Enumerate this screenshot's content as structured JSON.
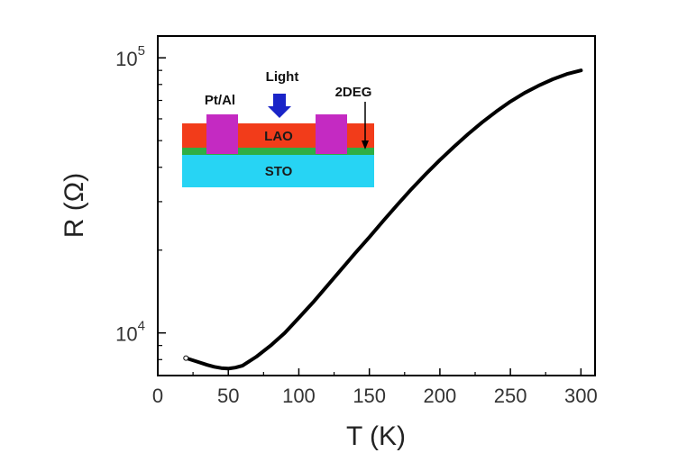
{
  "chart_data": {
    "type": "line",
    "title": "",
    "xlabel": "T (K)",
    "ylabel": "R (Ω)",
    "xlim": [
      0,
      310
    ],
    "ylim": [
      7000,
      120000
    ],
    "yscale": "log",
    "grid": false,
    "x_ticks": [
      {
        "value": 0,
        "label": "0"
      },
      {
        "value": 50,
        "label": "50"
      },
      {
        "value": 100,
        "label": "100"
      },
      {
        "value": 150,
        "label": "150"
      },
      {
        "value": 200,
        "label": "200"
      },
      {
        "value": 250,
        "label": "250"
      },
      {
        "value": 300,
        "label": "300"
      }
    ],
    "y_ticks": [
      {
        "value": 10000,
        "base": "10",
        "exp": "4"
      },
      {
        "value": 100000,
        "base": "10",
        "exp": "5"
      }
    ],
    "series": [
      {
        "name": "R(T)",
        "color": "#000000",
        "x": [
          20,
          25,
          30,
          35,
          40,
          45,
          50,
          55,
          60,
          70,
          80,
          90,
          100,
          110,
          120,
          130,
          140,
          150,
          160,
          170,
          180,
          190,
          200,
          210,
          220,
          230,
          240,
          250,
          260,
          270,
          280,
          290,
          300
        ],
        "y": [
          8100,
          7950,
          7800,
          7650,
          7530,
          7450,
          7420,
          7480,
          7600,
          8200,
          9000,
          10000,
          11350,
          12900,
          14800,
          17000,
          19500,
          22300,
          25600,
          29300,
          33400,
          37800,
          42500,
          47500,
          52800,
          58300,
          63800,
          69300,
          74500,
          79200,
          83600,
          87300,
          90000
        ]
      }
    ],
    "inset": {
      "labels": {
        "electrode": "Pt/Al",
        "light": "Light",
        "gas": "2DEG",
        "top_layer": "LAO",
        "substrate": "STO"
      },
      "colors": {
        "lao": "#f23c1a",
        "interface": "#2fae44",
        "sto": "#27d4f4",
        "electrode": "#c42ac2",
        "arrow": "#1a24c8"
      }
    }
  }
}
